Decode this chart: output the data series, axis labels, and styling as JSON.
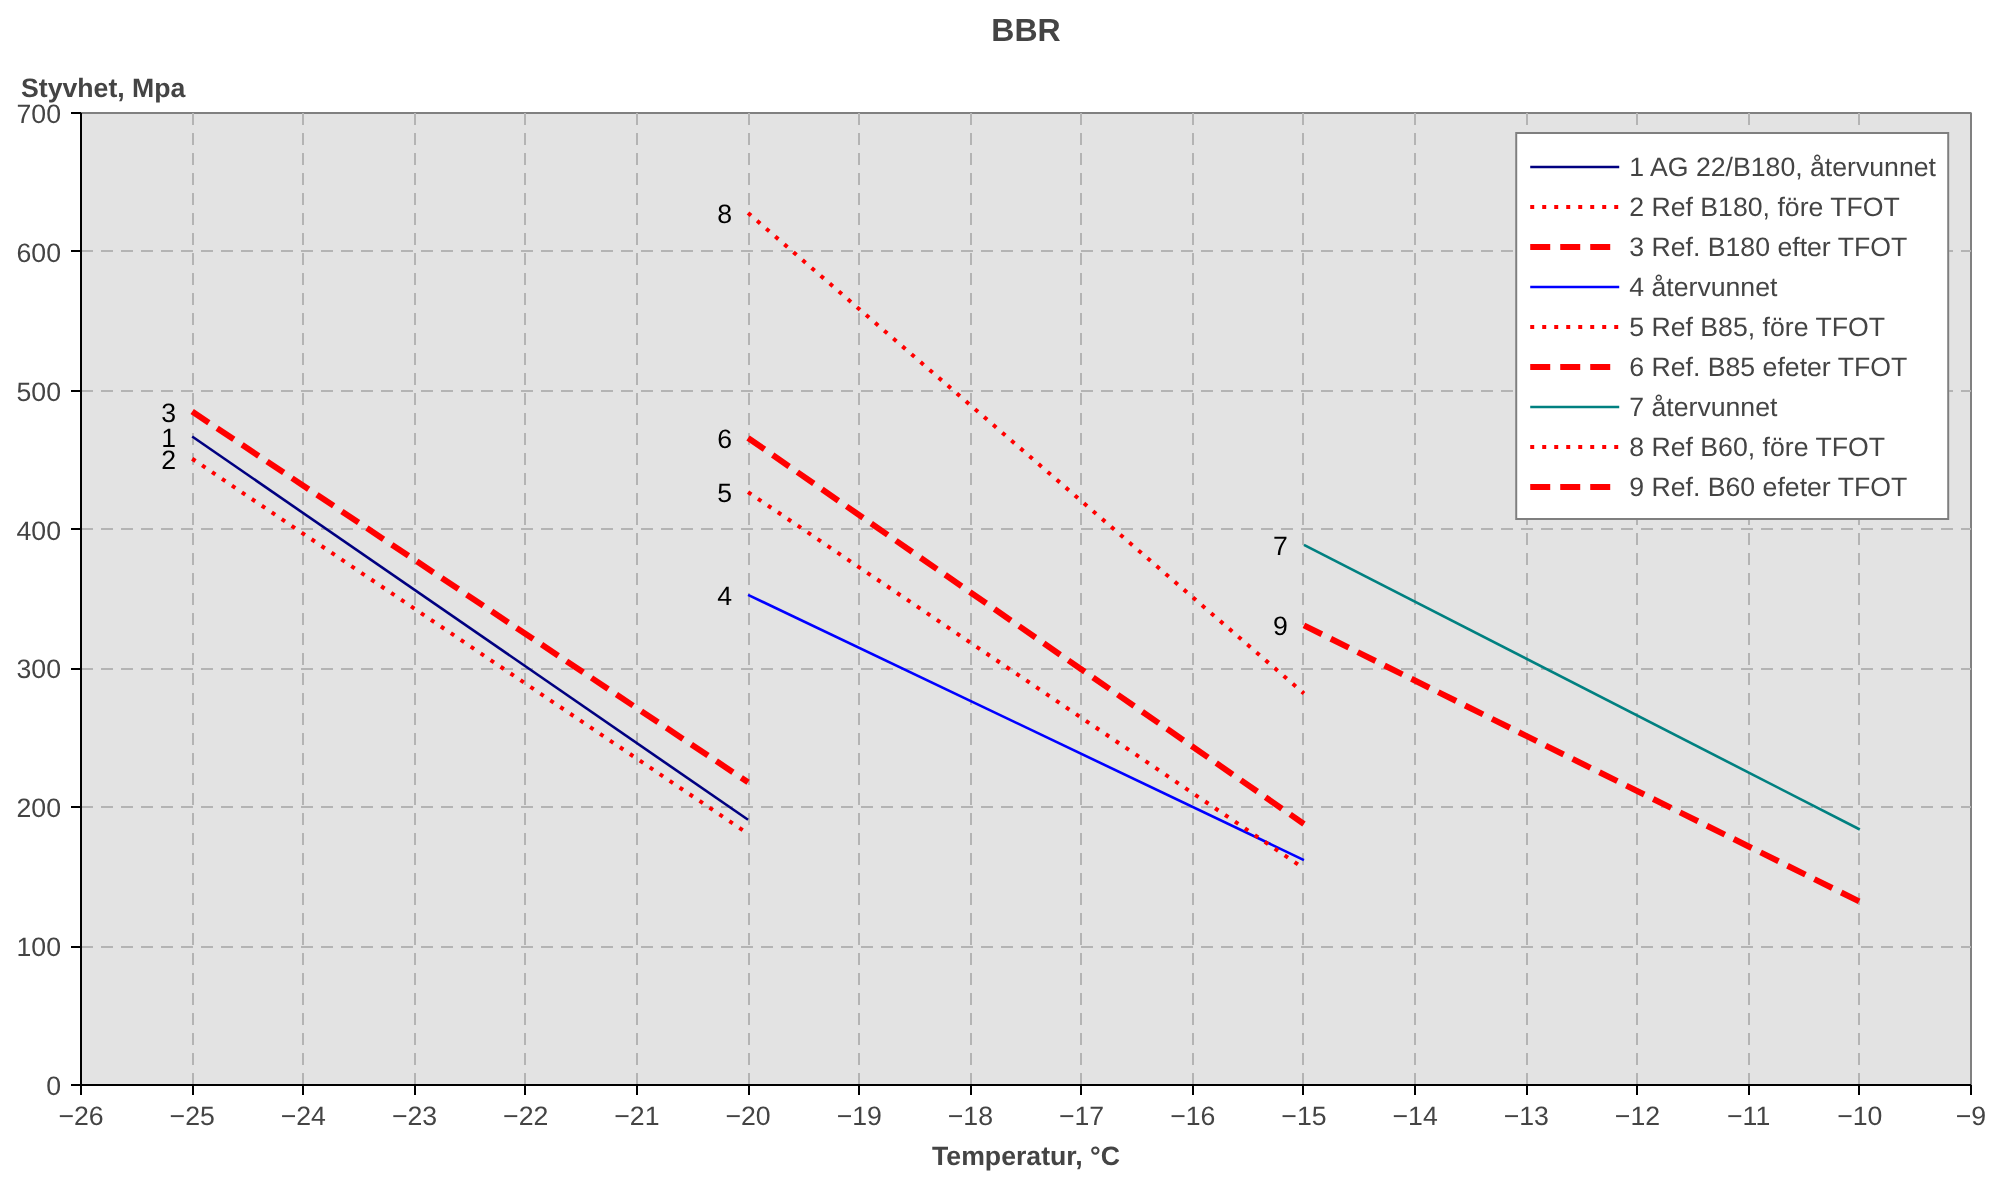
{
  "chart_data": {
    "type": "line",
    "title": "BBR",
    "ylabel": "Styvhet, Mpa",
    "xlabel": "Temperatur, °C",
    "xlim": [
      -26,
      -9
    ],
    "xticks": [
      -26,
      -25,
      -24,
      -23,
      -22,
      -21,
      -20,
      -19,
      -18,
      -17,
      -16,
      -15,
      -14,
      -13,
      -12,
      -11,
      -10,
      -9
    ],
    "ylim": [
      0,
      700
    ],
    "yticks": [
      0,
      100,
      200,
      300,
      400,
      500,
      600,
      700
    ],
    "grid": true,
    "legend": "top right",
    "marker": "none",
    "series": [
      {
        "name": "1 AG 22/B180, återvunnet",
        "color": "#000080",
        "line_style": "solid",
        "x": [
          -25,
          -20
        ],
        "values": [
          467,
          191
        ]
      },
      {
        "name": "2 Ref B180, före TFOT",
        "color": "#ff0000",
        "line_style": "dotted",
        "x": [
          -25,
          -20
        ],
        "values": [
          451,
          181
        ]
      },
      {
        "name": "3 Ref. B180 efter TFOT",
        "color": "#ff0000",
        "line_style": "dashed",
        "x": [
          -25,
          -20
        ],
        "values": [
          485,
          218
        ]
      },
      {
        "name": "4 återvunnet",
        "color": "#0000ff",
        "line_style": "solid",
        "x": [
          -20,
          -15
        ],
        "values": [
          353,
          162
        ]
      },
      {
        "name": "5 Ref B85, före TFOT",
        "color": "#ff0000",
        "line_style": "dotted",
        "x": [
          -20,
          -15
        ],
        "values": [
          427,
          156
        ]
      },
      {
        "name": "6 Ref. B85 efeter TFOT",
        "color": "#ff0000",
        "line_style": "dashed",
        "x": [
          -20,
          -15
        ],
        "values": [
          466,
          188
        ]
      },
      {
        "name": "7 återvunnet",
        "color": "#008080",
        "line_style": "solid",
        "x": [
          -15,
          -10
        ],
        "values": [
          389,
          184
        ]
      },
      {
        "name": "8 Ref B60, före TFOT",
        "color": "#ff0000",
        "line_style": "dotted",
        "x": [
          -20,
          -15
        ],
        "values": [
          628,
          282
        ]
      },
      {
        "name": "9 Ref. B60 efeter TFOT",
        "color": "#ff0000",
        "line_style": "dashed",
        "x": [
          -15,
          -10
        ],
        "values": [
          331,
          132
        ]
      }
    ],
    "annotations": [
      {
        "text": "3",
        "x": -25,
        "y": 485
      },
      {
        "text": "1",
        "x": -25,
        "y": 467
      },
      {
        "text": "2",
        "x": -25,
        "y": 451
      },
      {
        "text": "8",
        "x": -20,
        "y": 628
      },
      {
        "text": "6",
        "x": -20,
        "y": 466
      },
      {
        "text": "5",
        "x": -20,
        "y": 427
      },
      {
        "text": "4",
        "x": -20,
        "y": 353
      },
      {
        "text": "7",
        "x": -15,
        "y": 389
      },
      {
        "text": "9",
        "x": -15,
        "y": 331
      }
    ]
  }
}
